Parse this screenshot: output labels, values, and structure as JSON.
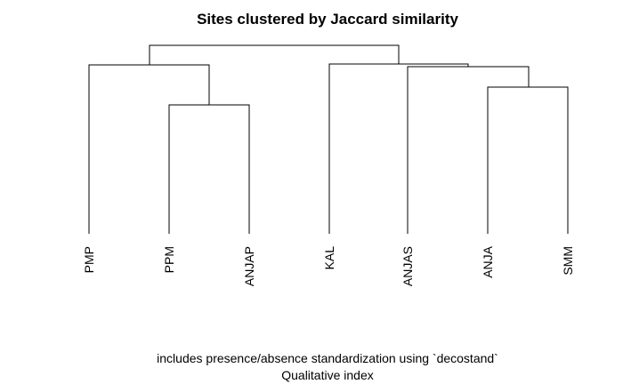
{
  "diagram": {
    "title": "Sites clustered by Jaccard similarity",
    "subtitle_line1": "includes presence/absence standardization using `decostand`",
    "subtitle_line2": "Qualitative index",
    "leaves": [
      "PMP",
      "PPM",
      "ANJAP",
      "KAL",
      "ANJAS",
      "ANJA",
      "SMM"
    ]
  }
}
